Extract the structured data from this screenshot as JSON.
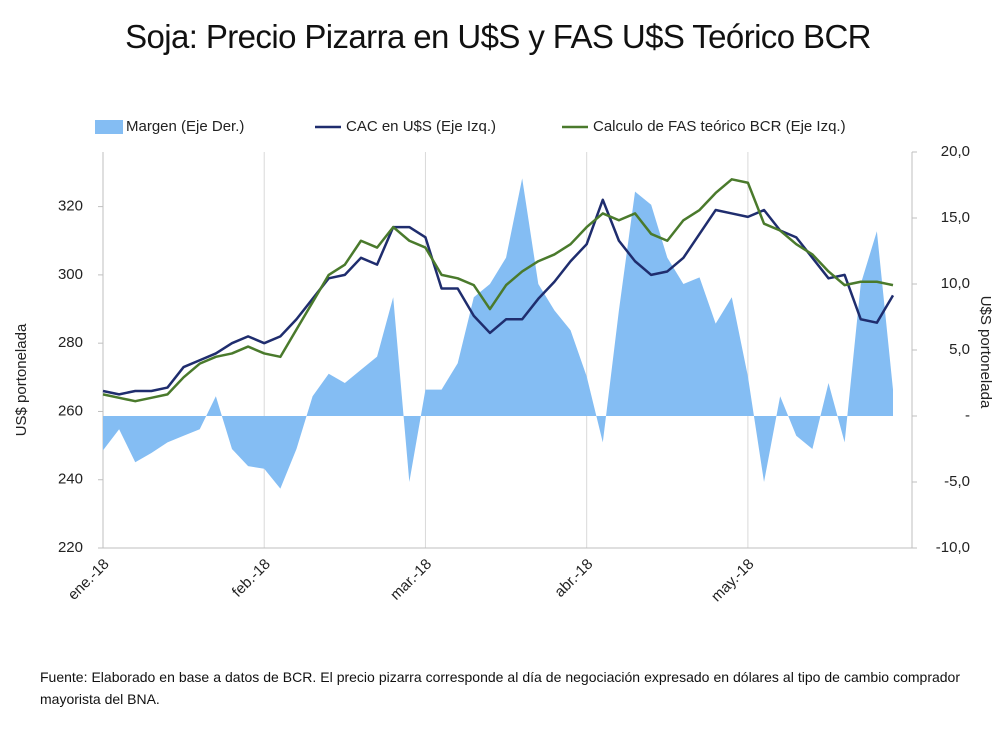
{
  "chart_data": {
    "type": "combo",
    "title": "Soja: Precio Pizarra en U$S y FAS U$S Teórico BCR",
    "y_label": "US$ portonelada",
    "y2_label": "U$S portonelada",
    "footnote": "Fuente: Elaborado en base a datos de BCR. El precio pizarra corresponde al día de negociación expresado en dólares al tipo de cambio comprador mayorista del BNA.",
    "categories": [
      "ene.-18",
      null,
      null,
      null,
      null,
      null,
      null,
      null,
      null,
      null,
      "feb.-18",
      null,
      null,
      null,
      null,
      null,
      null,
      null,
      null,
      null,
      "mar.-18",
      null,
      null,
      null,
      null,
      null,
      null,
      null,
      null,
      null,
      "abr.-18",
      null,
      null,
      null,
      null,
      null,
      null,
      null,
      null,
      null,
      "may.-18",
      null,
      null,
      null,
      null,
      null,
      null,
      null,
      null,
      null
    ],
    "series": [
      {
        "name": "Margen (Eje Der.)",
        "kind": "area",
        "axis": "y2",
        "color": "#84bdf3",
        "values": [
          -2.6,
          -1.0,
          -3.5,
          -2.8,
          -2.0,
          -1.5,
          -1.0,
          1.5,
          -2.5,
          -3.8,
          -4.0,
          -5.5,
          -2.5,
          1.5,
          3.2,
          2.5,
          3.5,
          4.5,
          9.0,
          -5.0,
          2.0,
          2.0,
          4.0,
          9.0,
          10.0,
          12.0,
          18.0,
          10.0,
          8.0,
          6.5,
          3.0,
          -2.0,
          8.0,
          17.0,
          16.0,
          12.0,
          10.0,
          10.5,
          7.0,
          9.0,
          3.0,
          -5.0,
          1.5,
          -1.5,
          -2.5,
          2.5,
          -2.0,
          10.0,
          14.0,
          2.0
        ]
      },
      {
        "name": "CAC en U$S (Eje Izq.)",
        "kind": "line",
        "color": "#1f2d6e",
        "values": [
          266,
          265,
          266,
          266,
          267,
          273,
          275,
          277,
          280,
          282,
          280,
          282,
          287,
          293,
          299,
          300,
          305,
          303,
          314,
          314,
          311,
          296,
          296,
          288,
          283,
          287,
          287,
          293,
          298,
          304,
          309,
          322,
          310,
          304,
          300,
          301,
          305,
          312,
          319,
          318,
          317,
          319,
          313,
          311,
          305,
          299,
          300,
          287,
          286,
          294
        ]
      },
      {
        "name": "Calculo de FAS teórico BCR (Eje Izq.)",
        "kind": "line",
        "color": "#4a7a2c",
        "values": [
          265,
          264,
          263,
          264,
          265,
          270,
          274,
          276,
          277,
          279,
          277,
          276,
          284,
          292,
          300,
          303,
          310,
          308,
          314,
          310,
          308,
          300,
          299,
          297,
          290,
          297,
          301,
          304,
          306,
          309,
          314,
          318,
          316,
          318,
          312,
          310,
          316,
          319,
          324,
          328,
          327,
          315,
          313,
          309,
          306,
          301,
          297,
          298,
          298,
          297
        ]
      }
    ],
    "ylim": [
      220,
      336
    ],
    "yticks": [
      220,
      240,
      260,
      280,
      300,
      320
    ],
    "y2lim": [
      -10,
      20
    ],
    "y2ticks": [
      {
        "value": -10,
        "label": "-10,0"
      },
      {
        "value": -5,
        "label": "-5,0"
      },
      {
        "value": 0,
        "label": "-"
      },
      {
        "value": 5,
        "label": "5,0"
      },
      {
        "value": 10,
        "label": "10,0"
      },
      {
        "value": 15,
        "label": "15,0"
      },
      {
        "value": 20,
        "label": "20,0"
      }
    ],
    "xgrid": true,
    "legend": "top"
  }
}
